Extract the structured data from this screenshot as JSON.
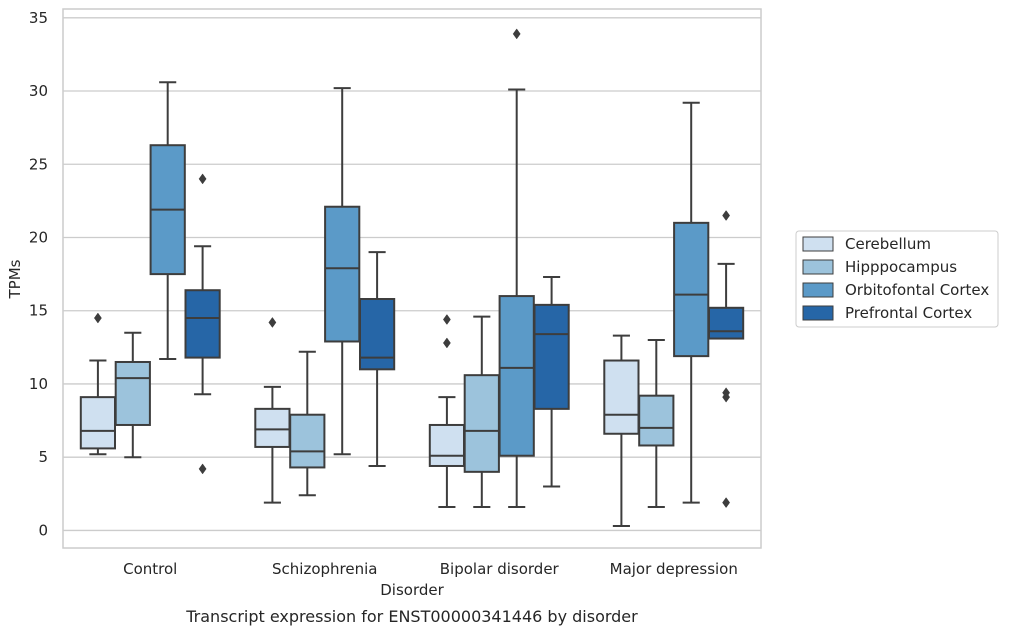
{
  "chart_data": {
    "type": "box",
    "caption": "Transcript expression for ENST00000341446 by disorder",
    "xlabel": "Disorder",
    "ylabel": "TPMs",
    "ylim": [
      -1.2,
      35.6
    ],
    "yticks": [
      0,
      5,
      10,
      15,
      20,
      25,
      30,
      35
    ],
    "grid": true,
    "legend_position": "right",
    "categories": [
      "Control",
      "Schizophrenia",
      "Bipolar disorder",
      "Major depression"
    ],
    "series": [
      {
        "name": "Cerebellum",
        "color": "#cfe0f0",
        "boxes": [
          {
            "whisker_low": 5.2,
            "q1": 5.6,
            "median": 6.8,
            "q3": 9.1,
            "whisker_high": 11.6,
            "outliers": [
              14.5
            ]
          },
          {
            "whisker_low": 1.9,
            "q1": 5.7,
            "median": 6.9,
            "q3": 8.3,
            "whisker_high": 9.8,
            "outliers": [
              14.2
            ]
          },
          {
            "whisker_low": 1.6,
            "q1": 4.4,
            "median": 5.1,
            "q3": 7.2,
            "whisker_high": 9.1,
            "outliers": [
              12.8,
              14.4
            ]
          },
          {
            "whisker_low": 0.3,
            "q1": 6.6,
            "median": 7.9,
            "q3": 11.6,
            "whisker_high": 13.3,
            "outliers": []
          }
        ]
      },
      {
        "name": "Hipppocampus",
        "color": "#9cc3dc",
        "boxes": [
          {
            "whisker_low": 5.0,
            "q1": 7.2,
            "median": 10.4,
            "q3": 11.5,
            "whisker_high": 13.5,
            "outliers": []
          },
          {
            "whisker_low": 2.4,
            "q1": 4.3,
            "median": 5.4,
            "q3": 7.9,
            "whisker_high": 12.2,
            "outliers": []
          },
          {
            "whisker_low": 1.6,
            "q1": 4.0,
            "median": 6.8,
            "q3": 10.6,
            "whisker_high": 14.6,
            "outliers": []
          },
          {
            "whisker_low": 1.6,
            "q1": 5.8,
            "median": 7.0,
            "q3": 9.2,
            "whisker_high": 13.0,
            "outliers": []
          }
        ]
      },
      {
        "name": "Orbitofontal Cortex",
        "color": "#5b9ac8",
        "boxes": [
          {
            "whisker_low": 11.7,
            "q1": 17.5,
            "median": 21.9,
            "q3": 26.3,
            "whisker_high": 30.6,
            "outliers": []
          },
          {
            "whisker_low": 5.2,
            "q1": 12.9,
            "median": 17.9,
            "q3": 22.1,
            "whisker_high": 30.2,
            "outliers": []
          },
          {
            "whisker_low": 1.6,
            "q1": 5.1,
            "median": 11.1,
            "q3": 16.0,
            "whisker_high": 30.1,
            "outliers": [
              33.9
            ]
          },
          {
            "whisker_low": 1.9,
            "q1": 11.9,
            "median": 16.1,
            "q3": 21.0,
            "whisker_high": 29.2,
            "outliers": []
          }
        ]
      },
      {
        "name": "Prefrontal Cortex",
        "color": "#2666a7",
        "boxes": [
          {
            "whisker_low": 9.3,
            "q1": 11.8,
            "median": 14.5,
            "q3": 16.4,
            "whisker_high": 19.4,
            "outliers": [
              4.2,
              24.0
            ]
          },
          {
            "whisker_low": 4.4,
            "q1": 11.0,
            "median": 11.8,
            "q3": 15.8,
            "whisker_high": 19.0,
            "outliers": []
          },
          {
            "whisker_low": 3.0,
            "q1": 8.3,
            "median": 13.4,
            "q3": 15.4,
            "whisker_high": 17.3,
            "outliers": []
          },
          {
            "whisker_low": 13.1,
            "q1": 13.1,
            "median": 13.6,
            "q3": 15.2,
            "whisker_high": 18.2,
            "outliers": [
              1.9,
              9.1,
              9.4,
              21.5
            ]
          }
        ]
      }
    ]
  }
}
